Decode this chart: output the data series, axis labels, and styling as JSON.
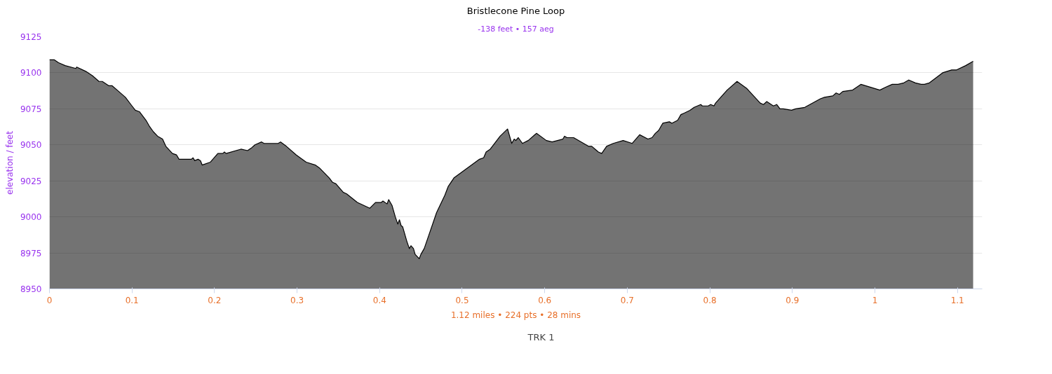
{
  "chart_data": {
    "type": "area",
    "title": "Bristlecone Pine Loop",
    "subtitle": "-138 feet • 157 aeg",
    "ylabel": "elevation / feet",
    "annotations": [
      "1.12 miles • 224 pts • 28 mins"
    ],
    "xlim": [
      0,
      1.13
    ],
    "xticks": [
      0,
      0.1,
      0.2,
      0.3,
      0.4,
      0.5,
      0.6,
      0.7,
      0.8,
      0.9,
      1,
      1.1
    ],
    "ylim": [
      8950,
      9125
    ],
    "yticks": [
      8950,
      8975,
      9000,
      9025,
      9050,
      9075,
      9100,
      9125
    ],
    "grid": "y",
    "legend": "bottom",
    "series": [
      {
        "name": "TRK 1",
        "color": "#000000",
        "x": [
          0,
          0.006,
          0.011,
          0.019,
          0.032,
          0.033,
          0.044,
          0.052,
          0.06,
          0.064,
          0.072,
          0.076,
          0.084,
          0.092,
          0.1,
          0.104,
          0.109,
          0.117,
          0.121,
          0.126,
          0.131,
          0.137,
          0.141,
          0.149,
          0.154,
          0.157,
          0.172,
          0.174,
          0.176,
          0.18,
          0.183,
          0.185,
          0.195,
          0.204,
          0.21,
          0.212,
          0.214,
          0.232,
          0.24,
          0.245,
          0.249,
          0.257,
          0.26,
          0.277,
          0.28,
          0.287,
          0.299,
          0.311,
          0.322,
          0.327,
          0.339,
          0.343,
          0.347,
          0.356,
          0.36,
          0.373,
          0.388,
          0.395,
          0.402,
          0.404,
          0.409,
          0.411,
          0.415,
          0.419,
          0.422,
          0.424,
          0.426,
          0.428,
          0.433,
          0.436,
          0.438,
          0.441,
          0.443,
          0.448,
          0.45,
          0.454,
          0.46,
          0.469,
          0.479,
          0.483,
          0.49,
          0.521,
          0.526,
          0.529,
          0.534,
          0.546,
          0.555,
          0.56,
          0.563,
          0.565,
          0.568,
          0.573,
          0.58,
          0.59,
          0.602,
          0.609,
          0.622,
          0.624,
          0.627,
          0.635,
          0.653,
          0.657,
          0.661,
          0.665,
          0.669,
          0.675,
          0.683,
          0.695,
          0.706,
          0.715,
          0.725,
          0.73,
          0.734,
          0.738,
          0.741,
          0.743,
          0.751,
          0.754,
          0.761,
          0.765,
          0.769,
          0.776,
          0.781,
          0.789,
          0.791,
          0.798,
          0.801,
          0.805,
          0.807,
          0.821,
          0.833,
          0.845,
          0.861,
          0.865,
          0.869,
          0.877,
          0.881,
          0.885,
          0.889,
          0.899,
          0.904,
          0.915,
          0.934,
          0.939,
          0.949,
          0.953,
          0.957,
          0.961,
          0.973,
          0.983,
          1.006,
          1.013,
          1.021,
          1.028,
          1.035,
          1.041,
          1.049,
          1.056,
          1.06,
          1.066,
          1.082,
          1.093,
          1.099,
          1.11,
          1.119
        ],
        "values": [
          9109,
          9109,
          9107,
          9105,
          9103,
          9104,
          9101,
          9098,
          9094,
          9094,
          9091,
          9091,
          9087,
          9083,
          9077,
          9074,
          9073,
          9067,
          9063,
          9059,
          9056,
          9054,
          9049,
          9044,
          9043,
          9040,
          9040,
          9041,
          9039,
          9040,
          9039,
          9036,
          9038,
          9044,
          9044,
          9045,
          9044,
          9047,
          9046,
          9048,
          9050,
          9052,
          9051,
          9051,
          9052,
          9049,
          9043,
          9038,
          9036,
          9034,
          9027,
          9024,
          9023,
          9017,
          9016,
          9010,
          9006,
          9010,
          9010,
          9011,
          9009,
          9012,
          9008,
          9000,
          8995,
          8998,
          8994,
          8993,
          8983,
          8978,
          8980,
          8978,
          8974,
          8971,
          8974,
          8978,
          8988,
          9003,
          9015,
          9021,
          9027,
          9040,
          9041,
          9045,
          9047,
          9056,
          9061,
          9051,
          9054,
          9053,
          9055,
          9051,
          9053,
          9058,
          9053,
          9052,
          9054,
          9056,
          9055,
          9055,
          9049,
          9049,
          9047,
          9045,
          9044,
          9049,
          9051,
          9053,
          9051,
          9057,
          9054,
          9055,
          9058,
          9060,
          9063,
          9065,
          9066,
          9065,
          9067,
          9071,
          9072,
          9074,
          9076,
          9078,
          9077,
          9077,
          9078,
          9077,
          9079,
          9088,
          9094,
          9089,
          9079,
          9078,
          9080,
          9077,
          9078,
          9075,
          9075,
          9074,
          9075,
          9076,
          9082,
          9083,
          9084,
          9086,
          9085,
          9087,
          9088,
          9092,
          9088,
          9090,
          9092,
          9092,
          9093,
          9095,
          9093,
          9092,
          9092,
          9093,
          9100,
          9102,
          9102,
          9105,
          9108
        ]
      }
    ]
  }
}
